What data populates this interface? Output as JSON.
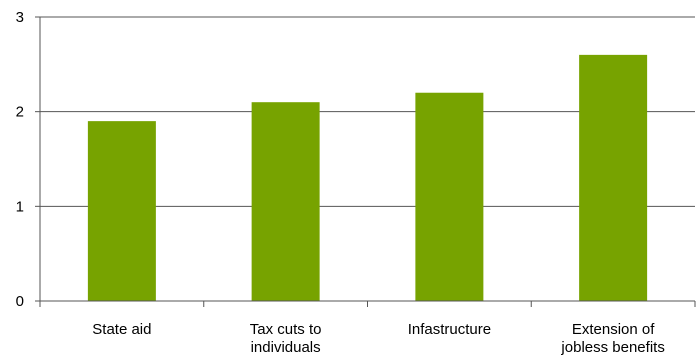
{
  "chart_data": {
    "type": "bar",
    "categories": [
      [
        "State aid"
      ],
      [
        "Tax cuts to",
        "individuals"
      ],
      [
        "Infastructure"
      ],
      [
        "Extension of",
        "jobless benefits"
      ]
    ],
    "values": [
      1.9,
      2.1,
      2.2,
      2.6
    ],
    "ylim": [
      0,
      3
    ],
    "yticks": [
      "0",
      "1",
      "2",
      "3"
    ],
    "grid": true,
    "bar_color": "#77a300"
  }
}
